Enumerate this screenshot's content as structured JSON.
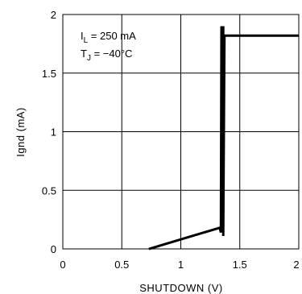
{
  "chart_data": {
    "type": "line",
    "title": "",
    "xlabel": "SHUTDOWN (V)",
    "ylabel": "Ignd (mA)",
    "xlim": [
      0,
      2
    ],
    "ylim": [
      0,
      2
    ],
    "xticks": [
      0,
      0.5,
      1,
      1.5,
      2
    ],
    "yticks": [
      0,
      0.5,
      1,
      1.5,
      2
    ],
    "xtick_labels": [
      "0",
      "0.5",
      "1",
      "1.5",
      "2"
    ],
    "ytick_labels": [
      "0",
      "0.5",
      "1",
      "1.5",
      "2"
    ],
    "grid": true,
    "annotations": {
      "line1_main": "I",
      "line1_sub": "L",
      "line1_rest": " = 250 mA",
      "line2_main": "T",
      "line2_sub": "J",
      "line2_rest": " = −40°C"
    },
    "series": [
      {
        "x": [
          0.73,
          1.33,
          1.34,
          1.345,
          1.36,
          1.36,
          1.37,
          2.0
        ],
        "y": [
          0.0,
          0.18,
          0.14,
          1.89,
          1.89,
          0.11,
          1.82,
          1.82
        ]
      }
    ]
  }
}
